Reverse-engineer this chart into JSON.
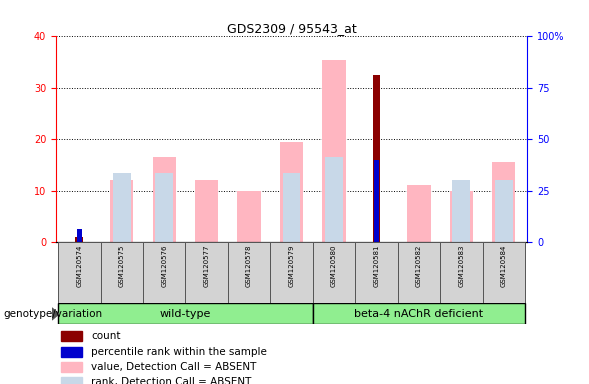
{
  "title": "GDS2309 / 95543_at",
  "samples": [
    "GSM120574",
    "GSM120575",
    "GSM120576",
    "GSM120577",
    "GSM120578",
    "GSM120579",
    "GSM120580",
    "GSM120581",
    "GSM120582",
    "GSM120583",
    "GSM120584"
  ],
  "count_values": [
    1.0,
    0,
    0,
    0,
    0,
    0,
    0,
    32.5,
    0,
    0,
    0
  ],
  "percentile_values": [
    2.5,
    0,
    0,
    0,
    0,
    0,
    0,
    16.0,
    0,
    0,
    0
  ],
  "value_absent": [
    0,
    12.0,
    16.5,
    12.0,
    10.0,
    19.5,
    35.5,
    0,
    11.0,
    10.0,
    15.5
  ],
  "rank_absent": [
    0,
    13.5,
    13.5,
    0,
    0,
    13.5,
    16.5,
    0,
    0,
    12.0,
    12.0
  ],
  "ylim_left": [
    0,
    40
  ],
  "ylim_right": [
    0,
    100
  ],
  "color_count": "#8B0000",
  "color_percentile": "#0000CD",
  "color_value_absent": "#FFB6C1",
  "color_rank_absent": "#C8D8E8",
  "sample_bg": "#D3D3D3",
  "wt_color": "#90EE90",
  "beta_color": "#90EE90",
  "legend_labels": [
    "count",
    "percentile rank within the sample",
    "value, Detection Call = ABSENT",
    "rank, Detection Call = ABSENT"
  ],
  "genotype_label": "genotype/variation"
}
